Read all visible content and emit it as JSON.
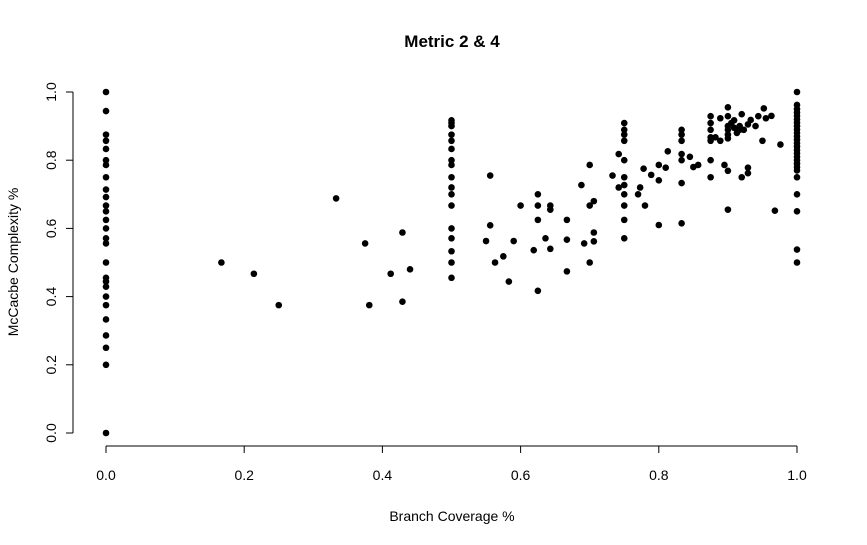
{
  "chart_data": {
    "type": "scatter",
    "title": "Metric 2 & 4",
    "xlabel": "Branch Coverage %",
    "ylabel": "McCacbe Complexity %",
    "xlim": [
      0,
      1
    ],
    "ylim": [
      0,
      1
    ],
    "grid": false,
    "xticks": [
      "0.0",
      "0.2",
      "0.4",
      "0.6",
      "0.8",
      "1.0"
    ],
    "yticks": [
      "0.0",
      "0.2",
      "0.4",
      "0.6",
      "0.8",
      "1.0"
    ],
    "points": [
      [
        0,
        1.0
      ],
      [
        0,
        0.944
      ],
      [
        0,
        0.875
      ],
      [
        0,
        0.857
      ],
      [
        0,
        0.833
      ],
      [
        0,
        0.8
      ],
      [
        0,
        0.786
      ],
      [
        0,
        0.75
      ],
      [
        0,
        0.714
      ],
      [
        0,
        0.692
      ],
      [
        0,
        0.667
      ],
      [
        0,
        0.65
      ],
      [
        0,
        0.625
      ],
      [
        0,
        0.6
      ],
      [
        0,
        0.571
      ],
      [
        0,
        0.556
      ],
      [
        0,
        0.5
      ],
      [
        0,
        0.455
      ],
      [
        0,
        0.444
      ],
      [
        0,
        0.429
      ],
      [
        0,
        0.4
      ],
      [
        0,
        0.375
      ],
      [
        0,
        0.333
      ],
      [
        0,
        0.286
      ],
      [
        0,
        0.25
      ],
      [
        0,
        0.2
      ],
      [
        0,
        0.0
      ],
      [
        0.167,
        0.5
      ],
      [
        0.214,
        0.467
      ],
      [
        0.25,
        0.375
      ],
      [
        0.333,
        0.688
      ],
      [
        0.375,
        0.556
      ],
      [
        0.381,
        0.375
      ],
      [
        0.412,
        0.467
      ],
      [
        0.429,
        0.588
      ],
      [
        0.429,
        0.385
      ],
      [
        0.44,
        0.48
      ],
      [
        0.5,
        0.917
      ],
      [
        0.5,
        0.909
      ],
      [
        0.5,
        0.9
      ],
      [
        0.5,
        0.875
      ],
      [
        0.5,
        0.857
      ],
      [
        0.5,
        0.833
      ],
      [
        0.5,
        0.8
      ],
      [
        0.5,
        0.786
      ],
      [
        0.5,
        0.75
      ],
      [
        0.5,
        0.72
      ],
      [
        0.5,
        0.7
      ],
      [
        0.5,
        0.667
      ],
      [
        0.5,
        0.6
      ],
      [
        0.5,
        0.571
      ],
      [
        0.5,
        0.533
      ],
      [
        0.5,
        0.5
      ],
      [
        0.5,
        0.455
      ],
      [
        0.55,
        0.563
      ],
      [
        0.556,
        0.609
      ],
      [
        0.556,
        0.755
      ],
      [
        0.563,
        0.5
      ],
      [
        0.575,
        0.518
      ],
      [
        0.583,
        0.444
      ],
      [
        0.59,
        0.563
      ],
      [
        0.6,
        0.667
      ],
      [
        0.619,
        0.536
      ],
      [
        0.625,
        0.7
      ],
      [
        0.625,
        0.667
      ],
      [
        0.625,
        0.625
      ],
      [
        0.625,
        0.417
      ],
      [
        0.636,
        0.571
      ],
      [
        0.643,
        0.667
      ],
      [
        0.643,
        0.655
      ],
      [
        0.643,
        0.54
      ],
      [
        0.667,
        0.625
      ],
      [
        0.667,
        0.567
      ],
      [
        0.667,
        0.474
      ],
      [
        0.688,
        0.727
      ],
      [
        0.692,
        0.556
      ],
      [
        0.7,
        0.786
      ],
      [
        0.7,
        0.667
      ],
      [
        0.7,
        0.5
      ],
      [
        0.706,
        0.68
      ],
      [
        0.706,
        0.588
      ],
      [
        0.706,
        0.562
      ],
      [
        0.733,
        0.755
      ],
      [
        0.742,
        0.818
      ],
      [
        0.75,
        0.909
      ],
      [
        0.75,
        0.889
      ],
      [
        0.75,
        0.875
      ],
      [
        0.75,
        0.857
      ],
      [
        0.75,
        0.8
      ],
      [
        0.75,
        0.75
      ],
      [
        0.75,
        0.727
      ],
      [
        0.75,
        0.7
      ],
      [
        0.75,
        0.667
      ],
      [
        0.75,
        0.625
      ],
      [
        0.75,
        0.571
      ],
      [
        0.742,
        0.72
      ],
      [
        0.77,
        0.7
      ],
      [
        0.773,
        0.72
      ],
      [
        0.778,
        0.775
      ],
      [
        0.78,
        0.667
      ],
      [
        0.789,
        0.757
      ],
      [
        0.8,
        0.786
      ],
      [
        0.8,
        0.741
      ],
      [
        0.8,
        0.61
      ],
      [
        0.81,
        0.778
      ],
      [
        0.813,
        0.826
      ],
      [
        0.833,
        0.889
      ],
      [
        0.833,
        0.875
      ],
      [
        0.833,
        0.857
      ],
      [
        0.833,
        0.818
      ],
      [
        0.833,
        0.8
      ],
      [
        0.833,
        0.733
      ],
      [
        0.833,
        0.615
      ],
      [
        0.845,
        0.81
      ],
      [
        0.85,
        0.78
      ],
      [
        0.857,
        0.786
      ],
      [
        0.875,
        0.929
      ],
      [
        0.875,
        0.909
      ],
      [
        0.875,
        0.889
      ],
      [
        0.875,
        0.867
      ],
      [
        0.875,
        0.857
      ],
      [
        0.875,
        0.8
      ],
      [
        0.875,
        0.75
      ],
      [
        0.882,
        0.867
      ],
      [
        0.889,
        0.857
      ],
      [
        0.889,
        0.923
      ],
      [
        0.895,
        0.786
      ],
      [
        0.9,
        0.955
      ],
      [
        0.9,
        0.929
      ],
      [
        0.9,
        0.9
      ],
      [
        0.9,
        0.889
      ],
      [
        0.9,
        0.875
      ],
      [
        0.9,
        0.864
      ],
      [
        0.9,
        0.769
      ],
      [
        0.9,
        0.655
      ],
      [
        0.905,
        0.909
      ],
      [
        0.909,
        0.895
      ],
      [
        0.909,
        0.917
      ],
      [
        0.913,
        0.88
      ],
      [
        0.917,
        0.889
      ],
      [
        0.917,
        0.9
      ],
      [
        0.92,
        0.935
      ],
      [
        0.92,
        0.75
      ],
      [
        0.923,
        0.889
      ],
      [
        0.929,
        0.905
      ],
      [
        0.929,
        0.762
      ],
      [
        0.929,
        0.778
      ],
      [
        0.933,
        0.918
      ],
      [
        0.94,
        0.9
      ],
      [
        0.944,
        0.929
      ],
      [
        0.95,
        0.857
      ],
      [
        0.952,
        0.952
      ],
      [
        0.955,
        0.923
      ],
      [
        0.963,
        0.93
      ],
      [
        0.968,
        0.652
      ],
      [
        0.976,
        0.846
      ],
      [
        1,
        1.0
      ],
      [
        1,
        0.962
      ],
      [
        1,
        0.95
      ],
      [
        1,
        0.94
      ],
      [
        1,
        0.93
      ],
      [
        1,
        0.92
      ],
      [
        1,
        0.91
      ],
      [
        1,
        0.9
      ],
      [
        1,
        0.89
      ],
      [
        1,
        0.88
      ],
      [
        1,
        0.87
      ],
      [
        1,
        0.86
      ],
      [
        1,
        0.85
      ],
      [
        1,
        0.84
      ],
      [
        1,
        0.83
      ],
      [
        1,
        0.82
      ],
      [
        1,
        0.81
      ],
      [
        1,
        0.8
      ],
      [
        1,
        0.79
      ],
      [
        1,
        0.78
      ],
      [
        1,
        0.77
      ],
      [
        1,
        0.75
      ],
      [
        1,
        0.7
      ],
      [
        1,
        0.65
      ],
      [
        1,
        0.538
      ],
      [
        1,
        0.5
      ]
    ]
  }
}
